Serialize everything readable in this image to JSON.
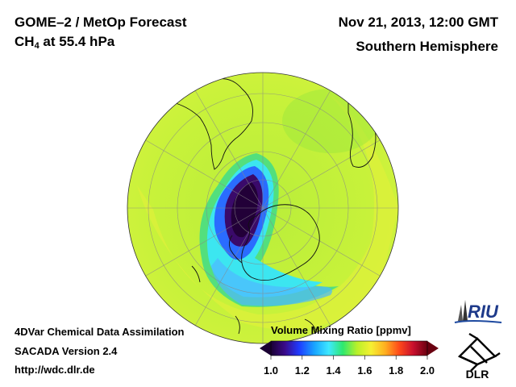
{
  "header": {
    "product_title": "GOME–2 / MetOp Forecast",
    "species": "CH",
    "species_sub": "4",
    "species_level": " at 55.4 hPa",
    "datetime": "Nov 21, 2013, 12:00 GMT",
    "region": "Southern Hemisphere"
  },
  "footer": {
    "line1": "4DVar Chemical Data Assimilation",
    "line2": "SACADA Version 2.4",
    "line3": "http://wdc.dlr.de"
  },
  "colorbar": {
    "title": "Volume Mixing Ratio [ppmv]",
    "ticks": [
      "1.0",
      "1.2",
      "1.4",
      "1.6",
      "1.8",
      "2.0"
    ],
    "min": 1.0,
    "max": 2.0,
    "colors": [
      "#1a0033",
      "#3a0a8a",
      "#1f3bff",
      "#19a6ff",
      "#3ee8ff",
      "#2ee86e",
      "#b8f02a",
      "#f5f032",
      "#ffb020",
      "#ff4a1a",
      "#c8102e",
      "#6a0010"
    ]
  },
  "logos": {
    "riu": "RIU",
    "dlr": "DLR"
  }
}
